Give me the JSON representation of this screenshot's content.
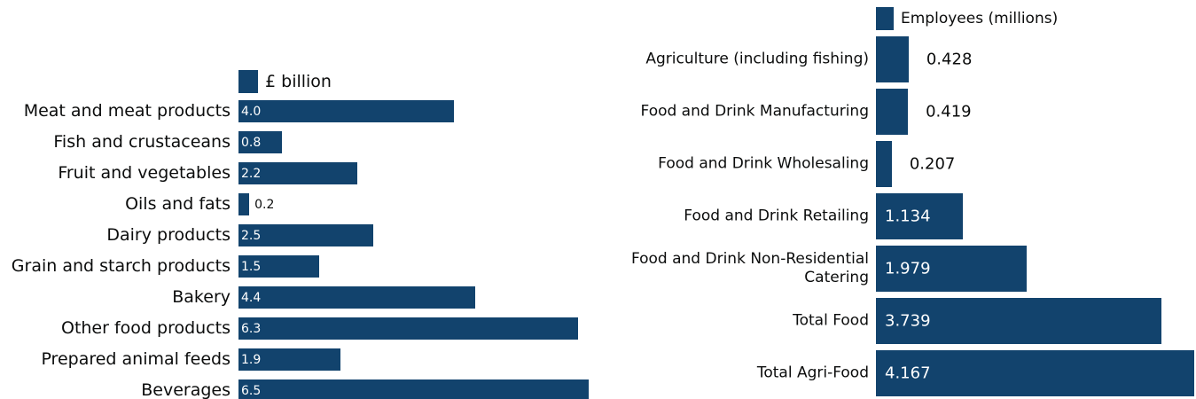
{
  "chart_data": [
    {
      "type": "bar",
      "orientation": "horizontal",
      "legend": "£ billion",
      "color": "#12436d",
      "categories": [
        "Meat and meat products",
        "Fish and crustaceans",
        "Fruit and vegetables",
        "Oils and fats",
        "Dairy products",
        "Grain and starch products",
        "Bakery",
        "Other food products",
        "Prepared animal feeds",
        "Beverages"
      ],
      "values": [
        4.0,
        0.8,
        2.2,
        0.2,
        2.5,
        1.5,
        4.4,
        6.3,
        1.9,
        6.5
      ],
      "value_labels": [
        "4.0",
        "0.8",
        "2.2",
        "0.2",
        "2.5",
        "1.5",
        "4.4",
        "6.3",
        "1.9",
        "6.5"
      ]
    },
    {
      "type": "bar",
      "orientation": "horizontal",
      "legend": "Employees (millions)",
      "color": "#12436d",
      "categories": [
        "Agriculture (including fishing)",
        "Food and Drink Manufacturing",
        "Food and Drink Wholesaling",
        "Food and Drink Retailing",
        "Food and Drink Non-Residential Catering",
        "Total Food",
        "Total Agri-Food"
      ],
      "values": [
        0.428,
        0.419,
        0.207,
        1.134,
        1.979,
        3.739,
        4.167
      ]
    }
  ]
}
